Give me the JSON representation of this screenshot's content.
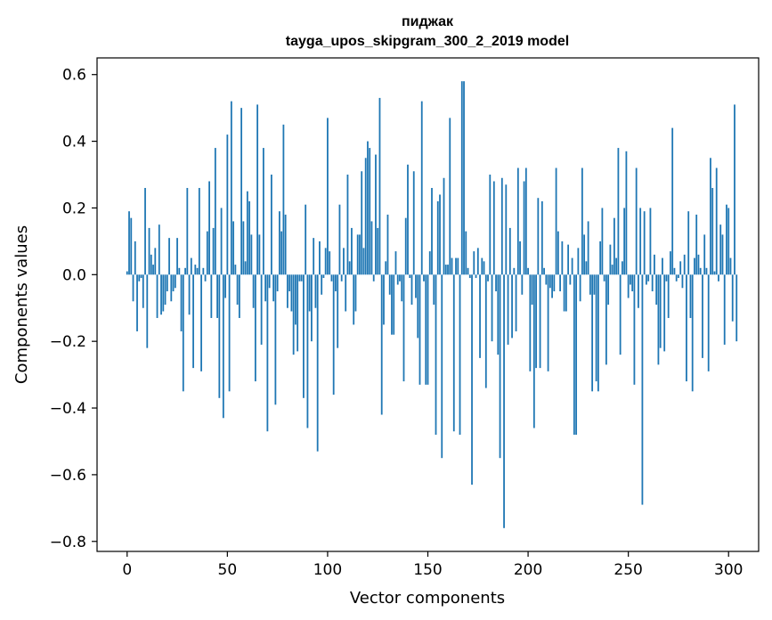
{
  "chart_data": {
    "type": "bar",
    "title": "пиджак",
    "subtitle": "tayga_upos_skipgram_300_2_2019 model",
    "xlabel": "Vector components",
    "ylabel": "Components values",
    "xlim": [
      -15,
      315
    ],
    "ylim": [
      -0.83,
      0.65
    ],
    "xticks": [
      0,
      50,
      100,
      150,
      200,
      250,
      300
    ],
    "xtick_labels": [
      "0",
      "50",
      "100",
      "150",
      "200",
      "250",
      "300"
    ],
    "yticks": [
      0.6,
      0.4,
      0.2,
      0.0,
      -0.2,
      -0.4,
      -0.6,
      -0.8
    ],
    "ytick_labels": [
      "0.6",
      "0.4",
      "0.2",
      "0.0",
      "−0.2",
      "−0.4",
      "−0.6",
      "−0.8"
    ],
    "grid": false,
    "bar_color": "#1f77b4",
    "series": [
      {
        "values": [
          0.01,
          0.19,
          0.17,
          -0.08,
          0.1,
          -0.17,
          -0.02,
          -0.01,
          -0.1,
          0.26,
          -0.22,
          0.14,
          0.06,
          0.03,
          0.08,
          -0.13,
          0.15,
          -0.12,
          -0.11,
          -0.09,
          -0.05,
          0.11,
          -0.08,
          -0.05,
          -0.04,
          0.11,
          0.02,
          -0.17,
          -0.35,
          0.02,
          0.26,
          -0.12,
          0.05,
          -0.28,
          0.03,
          0.02,
          0.26,
          -0.29,
          0.02,
          -0.02,
          0.13,
          0.28,
          -0.13,
          0.14,
          0.38,
          -0.13,
          -0.37,
          0.2,
          -0.43,
          -0.07,
          0.42,
          -0.35,
          0.52,
          0.16,
          0.03,
          -0.09,
          -0.13,
          0.5,
          0.16,
          0.04,
          0.25,
          0.22,
          0.12,
          -0.1,
          -0.32,
          0.51,
          0.12,
          -0.21,
          0.38,
          -0.08,
          -0.47,
          -0.04,
          0.3,
          -0.08,
          -0.39,
          -0.05,
          0.19,
          0.13,
          0.45,
          0.18,
          -0.1,
          -0.05,
          -0.11,
          -0.24,
          -0.15,
          -0.23,
          -0.02,
          -0.02,
          -0.37,
          0.21,
          -0.46,
          -0.11,
          -0.2,
          0.11,
          -0.1,
          -0.53,
          0.1,
          -0.06,
          -0.01,
          0.08,
          0.47,
          0.07,
          -0.02,
          -0.36,
          -0.05,
          -0.22,
          0.21,
          -0.02,
          0.08,
          -0.11,
          0.3,
          0.04,
          0.14,
          -0.15,
          -0.11,
          0.12,
          0.12,
          0.31,
          0.08,
          0.35,
          0.4,
          0.38,
          0.16,
          -0.02,
          0.36,
          0.14,
          0.53,
          -0.42,
          -0.15,
          0.04,
          0.18,
          -0.06,
          -0.18,
          -0.18,
          0.07,
          -0.03,
          -0.02,
          -0.08,
          -0.32,
          0.17,
          0.33,
          -0.01,
          -0.09,
          0.31,
          -0.07,
          -0.19,
          -0.33,
          0.52,
          -0.02,
          -0.33,
          -0.33,
          0.07,
          0.26,
          -0.09,
          -0.48,
          0.22,
          0.24,
          -0.55,
          0.29,
          0.03,
          0.03,
          0.47,
          0.05,
          -0.47,
          0.05,
          0.05,
          -0.48,
          0.58,
          0.58,
          0.13,
          0.02,
          -0.01,
          -0.63,
          0.07,
          -0.01,
          0.08,
          -0.25,
          0.05,
          0.04,
          -0.34,
          -0.02,
          0.3,
          -0.2,
          0.28,
          -0.05,
          -0.24,
          -0.55,
          0.29,
          -0.76,
          0.27,
          -0.21,
          0.14,
          -0.19,
          0.02,
          -0.17,
          0.32,
          0.1,
          -0.06,
          0.28,
          0.32,
          0.02,
          -0.29,
          -0.09,
          -0.46,
          -0.28,
          0.23,
          -0.28,
          0.22,
          0.02,
          -0.03,
          -0.29,
          -0.04,
          -0.07,
          -0.05,
          0.32,
          0.13,
          -0.05,
          0.1,
          -0.11,
          -0.11,
          0.09,
          -0.03,
          0.05,
          -0.48,
          -0.48,
          0.08,
          -0.08,
          0.32,
          0.12,
          0.04,
          0.16,
          -0.06,
          -0.35,
          -0.06,
          -0.32,
          -0.35,
          0.1,
          0.2,
          -0.02,
          -0.27,
          -0.09,
          0.09,
          0.03,
          0.17,
          0.05,
          0.38,
          -0.24,
          0.04,
          0.2,
          0.37,
          -0.07,
          -0.03,
          -0.05,
          -0.33,
          0.32,
          -0.1,
          0.2,
          -0.69,
          0.19,
          -0.03,
          -0.02,
          0.2,
          -0.05,
          0.06,
          -0.09,
          -0.27,
          -0.22,
          0.05,
          -0.23,
          -0.02,
          -0.13,
          0.07,
          0.44,
          0.02,
          -0.02,
          -0.01,
          0.04,
          -0.04,
          0.06,
          -0.32,
          0.19,
          -0.13,
          -0.35,
          0.05,
          0.18,
          0.06,
          0.02,
          -0.25,
          0.12,
          0.02,
          -0.29,
          0.35,
          0.26,
          0.01,
          0.32,
          -0.02,
          0.15,
          0.12,
          -0.21,
          0.21,
          0.2,
          0.05,
          -0.14,
          0.51,
          -0.2
        ]
      }
    ]
  }
}
